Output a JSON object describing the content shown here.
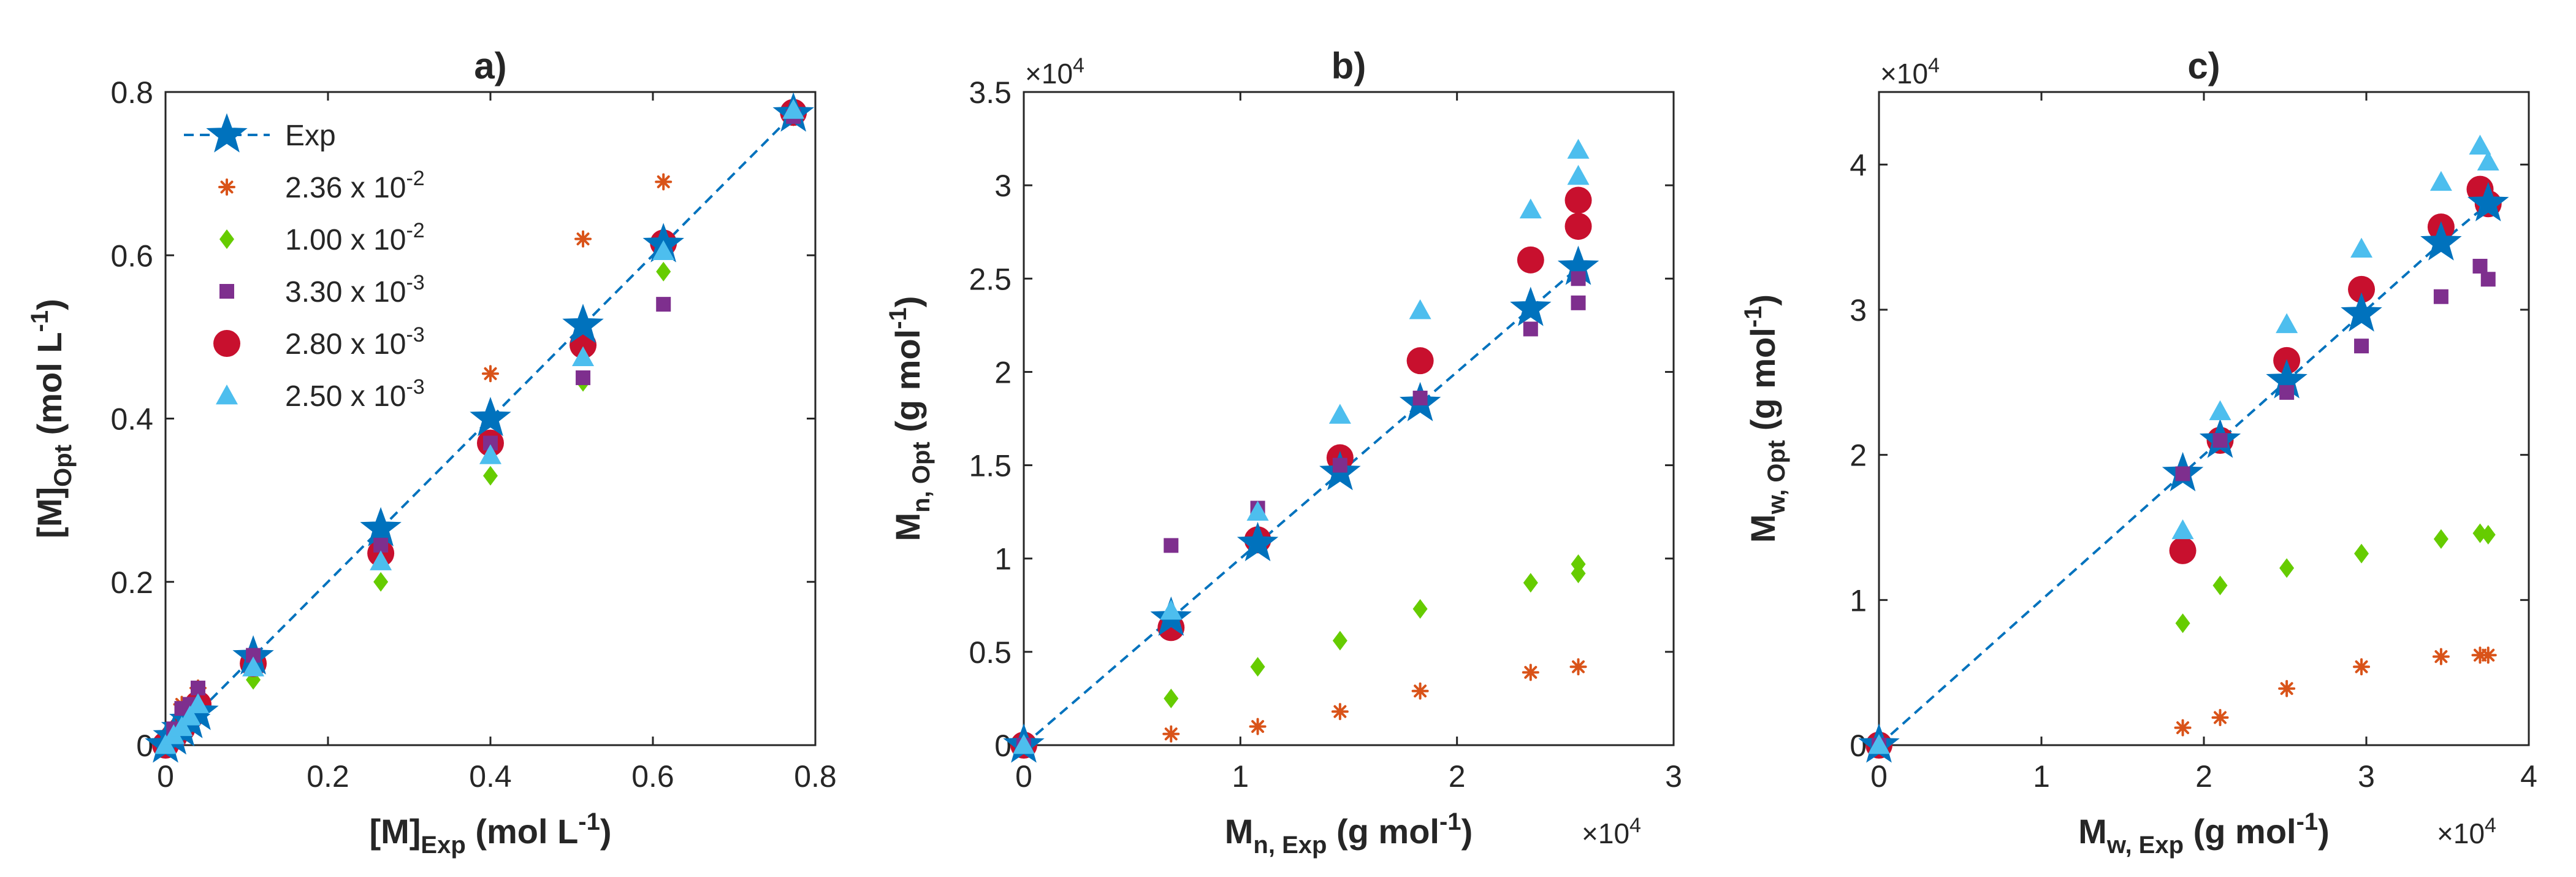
{
  "colors": {
    "exp": "#0072BD",
    "s236": "#D95319",
    "s100": "#66CC00",
    "s330": "#7E2F8E",
    "s280": "#C8102E",
    "s250": "#4DBEEE"
  },
  "legend": [
    {
      "key": "exp",
      "label": "Exp",
      "marker": "star",
      "color": "#0072BD"
    },
    {
      "key": "s236",
      "label": "2.36 x 10",
      "exp": "-2",
      "marker": "asterisk",
      "color": "#D95319"
    },
    {
      "key": "s100",
      "label": "1.00 x 10",
      "exp": "-2",
      "marker": "diamond",
      "color": "#66CC00"
    },
    {
      "key": "s330",
      "label": "3.30 x 10",
      "exp": "-3",
      "marker": "square",
      "color": "#7E2F8E"
    },
    {
      "key": "s280",
      "label": "2.80 x 10",
      "exp": "-3",
      "marker": "circle",
      "color": "#C8102E"
    },
    {
      "key": "s250",
      "label": "2.50 x 10",
      "exp": "-3",
      "marker": "triangle",
      "color": "#4DBEEE"
    }
  ],
  "chart_data": [
    {
      "type": "scatter",
      "title": "a)",
      "xlabel": {
        "main": "[M]",
        "sub": "Exp",
        "units": "(mol L",
        "sup": "-1",
        "close": ")"
      },
      "ylabel": {
        "main": "[M]",
        "sub": "Opt",
        "units": "(mol L",
        "sup": "-1",
        "close": ")"
      },
      "xlim": [
        0,
        0.8
      ],
      "ylim": [
        0,
        0.8
      ],
      "xticks": [
        0,
        0.2,
        0.4,
        0.6,
        0.8
      ],
      "yticks": [
        0,
        0.2,
        0.4,
        0.6,
        0.8
      ],
      "xtick_labels": [
        "0",
        "0.2",
        "0.4",
        "0.6",
        "0.8"
      ],
      "ytick_labels": [
        "0",
        "0.2",
        "0.4",
        "0.6",
        "0.8"
      ],
      "x_exponent": "",
      "y_exponent": "",
      "legend_position": "top-left",
      "series": [
        {
          "name": "Exp",
          "key": "exp",
          "x": [
            0,
            0.01,
            0.02,
            0.03,
            0.04,
            0.108,
            0.265,
            0.4,
            0.514,
            0.613,
            0.773
          ],
          "y": [
            0,
            0.01,
            0.02,
            0.03,
            0.04,
            0.108,
            0.265,
            0.4,
            0.514,
            0.613,
            0.773
          ]
        },
        {
          "name": "2.36 x 10-2",
          "key": "s236",
          "x": [
            0.02,
            0.04,
            0.108,
            0.265,
            0.4,
            0.514,
            0.613,
            0.773
          ],
          "y": [
            0.05,
            0.07,
            0.1,
            0.25,
            0.455,
            0.62,
            0.69,
            0.775
          ]
        },
        {
          "name": "1.00 x 10-2",
          "key": "s100",
          "x": [
            0.01,
            0.03,
            0.108,
            0.265,
            0.4,
            0.514,
            0.613,
            0.773
          ],
          "y": [
            0.01,
            0.03,
            0.08,
            0.2,
            0.33,
            0.445,
            0.58,
            0.77
          ]
        },
        {
          "name": "3.30 x 10-3",
          "key": "s330",
          "x": [
            0.01,
            0.02,
            0.03,
            0.04,
            0.108,
            0.265,
            0.4,
            0.514,
            0.613,
            0.773
          ],
          "y": [
            0.02,
            0.045,
            0.05,
            0.07,
            0.11,
            0.245,
            0.37,
            0.45,
            0.54,
            0.77
          ]
        },
        {
          "name": "2.80 x 10-3",
          "key": "s280",
          "x": [
            0,
            0.01,
            0.02,
            0.03,
            0.04,
            0.108,
            0.265,
            0.4,
            0.514,
            0.613,
            0.773
          ],
          "y": [
            0,
            0.01,
            0.02,
            0.035,
            0.05,
            0.1,
            0.235,
            0.37,
            0.49,
            0.615,
            0.775
          ]
        },
        {
          "name": "2.50 x 10-3",
          "key": "s250",
          "x": [
            0,
            0.01,
            0.02,
            0.03,
            0.04,
            0.108,
            0.265,
            0.4,
            0.514,
            0.613,
            0.773
          ],
          "y": [
            0,
            0.012,
            0.022,
            0.035,
            0.05,
            0.095,
            0.225,
            0.355,
            0.475,
            0.605,
            0.778
          ]
        }
      ]
    },
    {
      "type": "scatter",
      "title": "b)",
      "xlabel": {
        "main": "M",
        "sub": "n, Exp",
        "units": "(g mol",
        "sup": "-1",
        "close": ")"
      },
      "ylabel": {
        "main": "M",
        "sub": "n, Opt",
        "units": "(g mol",
        "sup": "-1",
        "close": ")"
      },
      "xlim": [
        0,
        30000
      ],
      "ylim": [
        0,
        35000
      ],
      "xticks": [
        0,
        10000,
        20000,
        30000
      ],
      "yticks": [
        0,
        5000,
        10000,
        15000,
        20000,
        25000,
        30000,
        35000
      ],
      "xtick_labels": [
        "0",
        "1",
        "2",
        "3"
      ],
      "ytick_labels": [
        "0",
        "0.5",
        "1",
        "1.5",
        "2",
        "2.5",
        "3",
        "3.5"
      ],
      "x_exponent": "×10",
      "x_exponent_sup": "4",
      "y_exponent": "×10",
      "y_exponent_sup": "4",
      "series": [
        {
          "name": "Exp",
          "key": "exp",
          "x": [
            0,
            6800,
            10800,
            14600,
            18300,
            23400,
            25600
          ],
          "y": [
            0,
            6800,
            10800,
            14600,
            18300,
            23400,
            25600
          ]
        },
        {
          "name": "2.36 x 10-2",
          "key": "s236",
          "x": [
            0,
            6800,
            10800,
            14600,
            18300,
            23400,
            25600
          ],
          "y": [
            0,
            600,
            1000,
            1800,
            2900,
            3900,
            4200
          ]
        },
        {
          "name": "1.00 x 10-2",
          "key": "s100",
          "x": [
            0,
            6800,
            10800,
            14600,
            18300,
            23400,
            25600,
            25600
          ],
          "y": [
            0,
            2500,
            4200,
            5600,
            7300,
            8700,
            9200,
            9700
          ]
        },
        {
          "name": "3.30 x 10-3",
          "key": "s330",
          "x": [
            0,
            6800,
            10800,
            14600,
            18300,
            23400,
            25600,
            25600
          ],
          "y": [
            0,
            10700,
            12700,
            15000,
            18600,
            22300,
            23700,
            25000
          ]
        },
        {
          "name": "2.80 x 10-3",
          "key": "s280",
          "x": [
            0,
            6800,
            10800,
            14600,
            18300,
            23400,
            25600,
            25600
          ],
          "y": [
            0,
            6300,
            11000,
            15400,
            20600,
            26000,
            27800,
            29200
          ]
        },
        {
          "name": "2.50 x 10-3",
          "key": "s250",
          "x": [
            0,
            6800,
            10800,
            14600,
            18300,
            23400,
            25600,
            25600
          ],
          "y": [
            0,
            7200,
            12500,
            17700,
            23300,
            28700,
            30500,
            31900
          ]
        }
      ]
    },
    {
      "type": "scatter",
      "title": "c)",
      "xlabel": {
        "main": "M",
        "sub": "w, Exp",
        "units": "(g mol",
        "sup": "-1",
        "close": ")"
      },
      "ylabel": {
        "main": "M",
        "sub": "w, Opt",
        "units": "(g mol",
        "sup": "-1",
        "close": ")"
      },
      "xlim": [
        0,
        40000
      ],
      "ylim": [
        0,
        45000
      ],
      "xticks": [
        0,
        10000,
        20000,
        30000,
        40000
      ],
      "yticks": [
        0,
        10000,
        20000,
        30000,
        40000
      ],
      "xtick_labels": [
        "0",
        "1",
        "2",
        "3",
        "4"
      ],
      "ytick_labels": [
        "0",
        "1",
        "2",
        "3",
        "4"
      ],
      "x_exponent": "×10",
      "x_exponent_sup": "4",
      "y_exponent": "×10",
      "y_exponent_sup": "4",
      "series": [
        {
          "name": "Exp",
          "key": "exp",
          "x": [
            0,
            18700,
            21000,
            25100,
            29700,
            34600,
            37500
          ],
          "y": [
            0,
            18700,
            21000,
            25100,
            29700,
            34600,
            37300
          ]
        },
        {
          "name": "2.36 x 10-2",
          "key": "s236",
          "x": [
            0,
            18700,
            21000,
            25100,
            29700,
            34600,
            37000,
            37500
          ],
          "y": [
            0,
            1200,
            1900,
            3900,
            5400,
            6100,
            6200,
            6200
          ]
        },
        {
          "name": "1.00 x 10-2",
          "key": "s100",
          "x": [
            0,
            18700,
            21000,
            25100,
            29700,
            34600,
            37000,
            37500
          ],
          "y": [
            0,
            8400,
            11000,
            12200,
            13200,
            14200,
            14600,
            14500
          ]
        },
        {
          "name": "3.30 x 10-3",
          "key": "s330",
          "x": [
            0,
            18700,
            21000,
            25100,
            29700,
            34600,
            37000,
            37500
          ],
          "y": [
            0,
            18700,
            21000,
            24300,
            27500,
            30900,
            33000,
            32100
          ]
        },
        {
          "name": "2.80 x 10-3",
          "key": "s280",
          "x": [
            0,
            18700,
            21000,
            25100,
            29700,
            34600,
            37000,
            37500
          ],
          "y": [
            0,
            13400,
            21000,
            26500,
            31400,
            35700,
            38300,
            37300
          ]
        },
        {
          "name": "2.50 x 10-3",
          "key": "s250",
          "x": [
            0,
            18700,
            21000,
            25100,
            29700,
            34600,
            37000,
            37500
          ],
          "y": [
            0,
            14800,
            23000,
            29000,
            34200,
            38800,
            41300,
            40200
          ]
        }
      ]
    }
  ]
}
